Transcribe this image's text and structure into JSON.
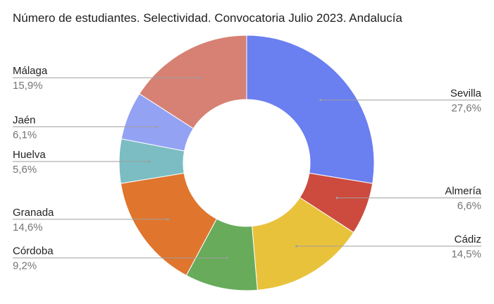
{
  "chart_data": {
    "type": "pie",
    "variant": "donut",
    "title": "Número de estudiantes. Selectividad. Convocatoria Julio 2023. Andalucía",
    "legend": "none",
    "slices": [
      {
        "label": "Sevilla",
        "value": 27.6,
        "value_text": "27,6%",
        "color": "#6a7ff0"
      },
      {
        "label": "Almería",
        "value": 6.6,
        "value_text": "6,6%",
        "color": "#cc4b3e"
      },
      {
        "label": "Cádiz",
        "value": 14.5,
        "value_text": "14,5%",
        "color": "#e9c23b"
      },
      {
        "label": "Córdoba",
        "value": 9.2,
        "value_text": "9,2%",
        "color": "#67ab5b"
      },
      {
        "label": "Granada",
        "value": 14.6,
        "value_text": "14,6%",
        "color": "#e0752e"
      },
      {
        "label": "Huelva",
        "value": 5.6,
        "value_text": "5,6%",
        "color": "#7bbdc3"
      },
      {
        "label": "Jaén",
        "value": 6.1,
        "value_text": "6,1%",
        "color": "#94a2f4"
      },
      {
        "label": "Málaga",
        "value": 15.9,
        "value_text": "15,9%",
        "color": "#d68173"
      }
    ]
  }
}
